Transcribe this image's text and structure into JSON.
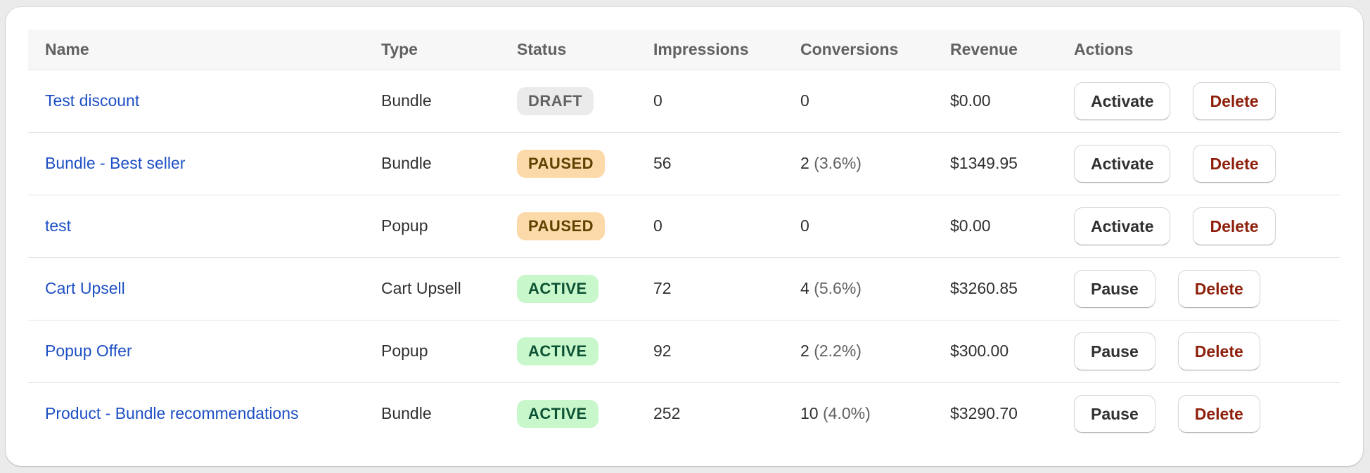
{
  "table": {
    "headers": {
      "name": "Name",
      "type": "Type",
      "status": "Status",
      "impressions": "Impressions",
      "conversions": "Conversions",
      "revenue": "Revenue",
      "actions": "Actions"
    },
    "rows": [
      {
        "name": "Test discount",
        "type": "Bundle",
        "status": "DRAFT",
        "impressions": "0",
        "conversions": "0",
        "conversion_rate": "",
        "revenue": "$0.00",
        "toggle_label": "Activate",
        "delete_label": "Delete"
      },
      {
        "name": "Bundle - Best seller",
        "type": "Bundle",
        "status": "PAUSED",
        "impressions": "56",
        "conversions": "2",
        "conversion_rate": "(3.6%)",
        "revenue": "$1349.95",
        "toggle_label": "Activate",
        "delete_label": "Delete"
      },
      {
        "name": "test",
        "type": "Popup",
        "status": "PAUSED",
        "impressions": "0",
        "conversions": "0",
        "conversion_rate": "",
        "revenue": "$0.00",
        "toggle_label": "Activate",
        "delete_label": "Delete"
      },
      {
        "name": "Cart Upsell",
        "type": "Cart Upsell",
        "status": "ACTIVE",
        "impressions": "72",
        "conversions": "4",
        "conversion_rate": "(5.6%)",
        "revenue": "$3260.85",
        "toggle_label": "Pause",
        "delete_label": "Delete"
      },
      {
        "name": "Popup Offer",
        "type": "Popup",
        "status": "ACTIVE",
        "impressions": "92",
        "conversions": "2",
        "conversion_rate": "(2.2%)",
        "revenue": "$300.00",
        "toggle_label": "Pause",
        "delete_label": "Delete"
      },
      {
        "name": "Product - Bundle recommendations",
        "type": "Bundle",
        "status": "ACTIVE",
        "impressions": "252",
        "conversions": "10",
        "conversion_rate": "(4.0%)",
        "revenue": "$3290.70",
        "toggle_label": "Pause",
        "delete_label": "Delete"
      }
    ]
  },
  "colors": {
    "link": "#1d4fc4",
    "draft_badge": "#ebebeb",
    "paused_badge": "#fcd9a8",
    "active_badge": "#c8f7cc",
    "delete_text": "#8e1f0b"
  }
}
